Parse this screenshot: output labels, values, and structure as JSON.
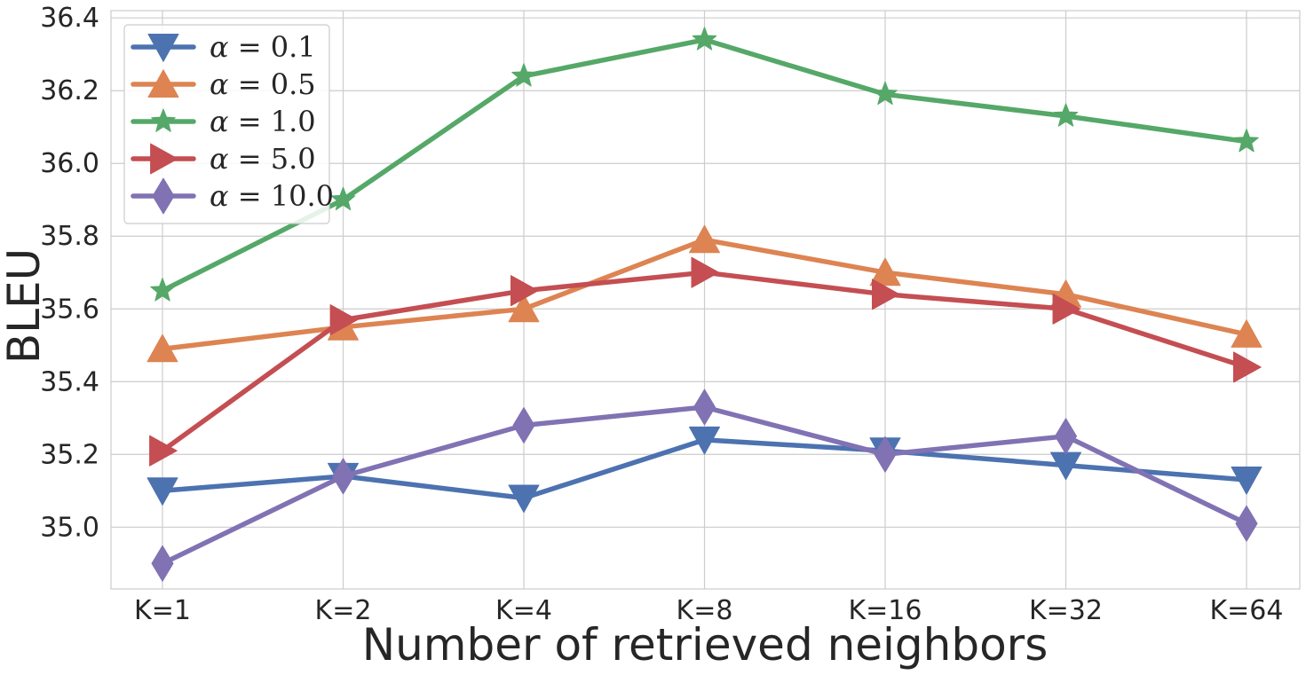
{
  "chart_data": {
    "type": "line",
    "title": "",
    "xlabel": "Number of retrieved neighbors",
    "ylabel": "BLEU",
    "categories": [
      "K=1",
      "K=2",
      "K=4",
      "K=8",
      "K=16",
      "K=32",
      "K=64"
    ],
    "ylim": [
      34.83,
      36.42
    ],
    "yticks": [
      35.0,
      35.2,
      35.4,
      35.6,
      35.8,
      36.0,
      36.2,
      36.4
    ],
    "ytick_labels": [
      "35.0",
      "35.2",
      "35.4",
      "35.6",
      "35.8",
      "36.0",
      "36.2",
      "36.4"
    ],
    "grid": true,
    "legend_position": "top-left",
    "series": [
      {
        "name": "α = 0.1",
        "label_symbol": "α",
        "label_rest": " = 0.1",
        "color": "#4c72b0",
        "marker": "triangle-down",
        "values": [
          35.1,
          35.14,
          35.08,
          35.24,
          35.21,
          35.17,
          35.13
        ]
      },
      {
        "name": "α = 0.5",
        "label_symbol": "α",
        "label_rest": " = 0.5",
        "color": "#dd8452",
        "marker": "triangle-up",
        "values": [
          35.49,
          35.55,
          35.6,
          35.79,
          35.7,
          35.64,
          35.53
        ]
      },
      {
        "name": "α = 1.0",
        "label_symbol": "α",
        "label_rest": " = 1.0",
        "color": "#55a868",
        "marker": "star",
        "values": [
          35.65,
          35.9,
          36.24,
          36.34,
          36.19,
          36.13,
          36.06
        ]
      },
      {
        "name": "α = 5.0",
        "label_symbol": "α",
        "label_rest": " = 5.0",
        "color": "#c44e52",
        "marker": "triangle-right",
        "values": [
          35.21,
          35.57,
          35.65,
          35.7,
          35.64,
          35.6,
          35.44
        ]
      },
      {
        "name": "α = 10.0",
        "label_symbol": "α",
        "label_rest": " = 10.0",
        "color": "#8172b3",
        "marker": "diamond",
        "values": [
          34.9,
          35.14,
          35.28,
          35.33,
          35.2,
          35.25,
          35.01
        ]
      }
    ]
  }
}
